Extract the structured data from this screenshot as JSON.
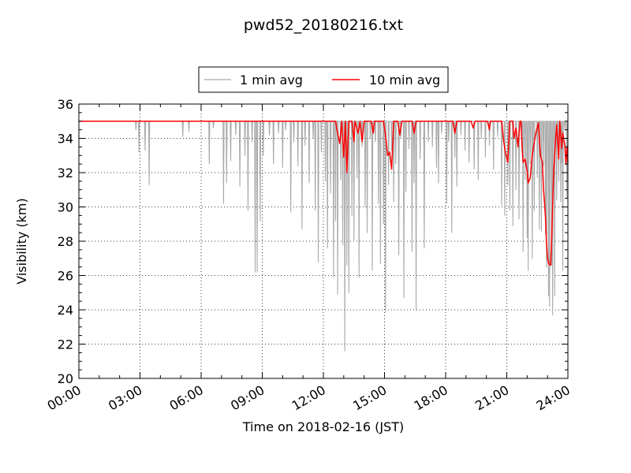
{
  "chart_data": {
    "type": "line",
    "title": "pwd52_20180216.txt",
    "xlabel": "Time on 2018-02-16 (JST)",
    "ylabel": "Visibility (km)",
    "xlim_hours": [
      0,
      24
    ],
    "ylim": [
      20,
      36
    ],
    "x_ticks": [
      {
        "hour": 0,
        "label": "00:00"
      },
      {
        "hour": 3,
        "label": "03:00"
      },
      {
        "hour": 6,
        "label": "06:00"
      },
      {
        "hour": 9,
        "label": "09:00"
      },
      {
        "hour": 12,
        "label": "12:00"
      },
      {
        "hour": 15,
        "label": "15:00"
      },
      {
        "hour": 18,
        "label": "18:00"
      },
      {
        "hour": 21,
        "label": "21:00"
      },
      {
        "hour": 24,
        "label": "24:00"
      }
    ],
    "y_ticks": [
      20,
      22,
      24,
      26,
      28,
      30,
      32,
      34,
      36
    ],
    "grid": true,
    "legend": "top-center, outside plot",
    "series": [
      {
        "name": "1 min avg",
        "color": "#aaaaaa",
        "baseline": 35.0,
        "dips": [
          [
            2.8,
            34.5
          ],
          [
            2.95,
            33.2
          ],
          [
            3.25,
            33.3
          ],
          [
            3.45,
            31.3
          ],
          [
            5.1,
            34.1
          ],
          [
            5.4,
            34.4
          ],
          [
            6.4,
            32.5
          ],
          [
            6.6,
            34.6
          ],
          [
            7.1,
            30.2
          ],
          [
            7.25,
            31.4
          ],
          [
            7.45,
            32.7
          ],
          [
            7.7,
            34.2
          ],
          [
            7.9,
            31.2
          ],
          [
            8.15,
            33.0
          ],
          [
            8.3,
            29.8
          ],
          [
            8.5,
            33.8
          ],
          [
            8.65,
            26.2
          ],
          [
            8.75,
            26.2
          ],
          [
            8.9,
            29.2
          ],
          [
            9.05,
            33.0
          ],
          [
            9.35,
            34.2
          ],
          [
            9.55,
            32.5
          ],
          [
            9.8,
            34.3
          ],
          [
            10.0,
            32.3
          ],
          [
            10.15,
            34.5
          ],
          [
            10.4,
            29.7
          ],
          [
            10.55,
            33.8
          ],
          [
            10.75,
            32.4
          ],
          [
            10.95,
            28.7
          ],
          [
            11.1,
            33.6
          ],
          [
            11.3,
            31.4
          ],
          [
            11.5,
            34.0
          ],
          [
            11.6,
            29.8
          ],
          [
            11.75,
            26.8
          ],
          [
            11.9,
            33.2
          ],
          [
            12.1,
            31.5
          ],
          [
            12.2,
            27.6
          ],
          [
            12.35,
            30.8
          ],
          [
            12.5,
            25.9
          ],
          [
            12.6,
            29.2
          ],
          [
            12.7,
            24.9
          ],
          [
            12.85,
            31.6
          ],
          [
            12.95,
            27.8
          ],
          [
            13.05,
            21.6
          ],
          [
            13.15,
            26.6
          ],
          [
            13.25,
            25.0
          ],
          [
            13.4,
            29.5
          ],
          [
            13.5,
            28.0
          ],
          [
            13.65,
            31.7
          ],
          [
            13.75,
            25.9
          ],
          [
            13.9,
            33.5
          ],
          [
            14.05,
            30.0
          ],
          [
            14.15,
            28.5
          ],
          [
            14.3,
            34.0
          ],
          [
            14.4,
            26.3
          ],
          [
            14.55,
            33.8
          ],
          [
            14.7,
            30.2
          ],
          [
            14.8,
            26.7
          ],
          [
            14.95,
            29.0
          ],
          [
            15.05,
            23.9
          ],
          [
            15.2,
            31.3
          ],
          [
            15.35,
            33.3
          ],
          [
            15.45,
            30.3
          ],
          [
            15.55,
            32.5
          ],
          [
            15.7,
            27.2
          ],
          [
            15.8,
            34.0
          ],
          [
            15.95,
            24.7
          ],
          [
            16.05,
            30.9
          ],
          [
            16.2,
            33.4
          ],
          [
            16.35,
            27.4
          ],
          [
            16.45,
            31.4
          ],
          [
            16.55,
            24.0
          ],
          [
            16.75,
            32.8
          ],
          [
            16.95,
            27.6
          ],
          [
            17.15,
            33.8
          ],
          [
            17.35,
            33.5
          ],
          [
            17.55,
            32.3
          ],
          [
            17.65,
            31.4
          ],
          [
            17.8,
            34.3
          ],
          [
            18.05,
            30.2
          ],
          [
            18.15,
            33.8
          ],
          [
            18.3,
            28.5
          ],
          [
            18.45,
            32.9
          ],
          [
            18.55,
            31.2
          ],
          [
            18.75,
            34.2
          ],
          [
            18.95,
            33.3
          ],
          [
            19.15,
            32.6
          ],
          [
            19.4,
            32.2
          ],
          [
            19.6,
            31.6
          ],
          [
            19.75,
            34.0
          ],
          [
            19.95,
            32.9
          ],
          [
            20.15,
            33.6
          ],
          [
            20.35,
            32.2
          ],
          [
            20.55,
            34.1
          ],
          [
            20.75,
            30.1
          ],
          [
            20.9,
            29.5
          ],
          [
            21.05,
            31.3
          ],
          [
            21.15,
            29.8
          ],
          [
            21.3,
            28.9
          ],
          [
            21.45,
            31.0
          ],
          [
            21.6,
            29.3
          ],
          [
            21.75,
            33.3
          ],
          [
            21.8,
            27.4
          ],
          [
            21.9,
            31.6
          ],
          [
            22.0,
            28.2
          ],
          [
            22.05,
            26.3
          ],
          [
            22.15,
            32.5
          ],
          [
            22.25,
            27.0
          ],
          [
            22.35,
            29.8
          ],
          [
            22.5,
            31.7
          ],
          [
            22.6,
            28.7
          ],
          [
            22.7,
            28.6
          ],
          [
            22.8,
            32.4
          ],
          [
            22.9,
            28.4
          ],
          [
            22.95,
            26.5
          ],
          [
            23.05,
            24.8
          ],
          [
            23.1,
            24.2
          ],
          [
            23.2,
            26.6
          ],
          [
            23.25,
            23.7
          ],
          [
            23.35,
            24.8
          ],
          [
            23.45,
            30.4
          ],
          [
            23.55,
            31.5
          ],
          [
            23.65,
            30.3
          ],
          [
            23.7,
            32.6
          ],
          [
            23.75,
            26.3
          ],
          [
            23.85,
            34.5
          ],
          [
            23.95,
            30.5
          ]
        ]
      },
      {
        "name": "10 min avg",
        "color": "#ff0000",
        "points": [
          [
            0,
            35.0
          ],
          [
            12.6,
            35.0
          ],
          [
            12.65,
            34.6
          ],
          [
            12.8,
            33.7
          ],
          [
            12.9,
            35.0
          ],
          [
            13.0,
            32.9
          ],
          [
            13.08,
            35.0
          ],
          [
            13.15,
            32.0
          ],
          [
            13.25,
            35.0
          ],
          [
            13.4,
            35.0
          ],
          [
            13.5,
            33.8
          ],
          [
            13.55,
            35.0
          ],
          [
            13.7,
            34.3
          ],
          [
            13.8,
            35.0
          ],
          [
            13.9,
            33.8
          ],
          [
            14.0,
            35.0
          ],
          [
            14.35,
            35.0
          ],
          [
            14.45,
            34.3
          ],
          [
            14.5,
            35.0
          ],
          [
            14.95,
            35.0
          ],
          [
            15.05,
            34.2
          ],
          [
            15.15,
            33.0
          ],
          [
            15.25,
            33.2
          ],
          [
            15.35,
            32.2
          ],
          [
            15.45,
            35.0
          ],
          [
            15.65,
            35.0
          ],
          [
            15.75,
            34.2
          ],
          [
            15.85,
            35.0
          ],
          [
            16.35,
            35.0
          ],
          [
            16.45,
            34.3
          ],
          [
            16.55,
            35.0
          ],
          [
            18.35,
            35.0
          ],
          [
            18.45,
            34.3
          ],
          [
            18.55,
            35.0
          ],
          [
            19.25,
            35.0
          ],
          [
            19.35,
            34.6
          ],
          [
            19.45,
            35.0
          ],
          [
            20.05,
            35.0
          ],
          [
            20.15,
            34.5
          ],
          [
            20.2,
            35.0
          ],
          [
            20.75,
            35.0
          ],
          [
            20.85,
            33.8
          ],
          [
            20.95,
            33.1
          ],
          [
            21.05,
            32.6
          ],
          [
            21.15,
            35.0
          ],
          [
            21.3,
            35.0
          ],
          [
            21.35,
            34.0
          ],
          [
            21.45,
            34.6
          ],
          [
            21.55,
            33.5
          ],
          [
            21.65,
            35.0
          ],
          [
            21.7,
            35.0
          ],
          [
            21.75,
            33.5
          ],
          [
            21.8,
            32.6
          ],
          [
            21.9,
            32.8
          ],
          [
            22.0,
            32.1
          ],
          [
            22.05,
            31.4
          ],
          [
            22.15,
            31.7
          ],
          [
            22.25,
            33.0
          ],
          [
            22.35,
            33.8
          ],
          [
            22.45,
            34.4
          ],
          [
            22.55,
            34.9
          ],
          [
            22.65,
            33.0
          ],
          [
            22.75,
            32.6
          ],
          [
            22.8,
            31.1
          ],
          [
            22.9,
            29.4
          ],
          [
            22.95,
            27.9
          ],
          [
            23.0,
            27.0
          ],
          [
            23.05,
            26.7
          ],
          [
            23.15,
            26.6
          ],
          [
            23.2,
            28.0
          ],
          [
            23.3,
            32.0
          ],
          [
            23.4,
            34.0
          ],
          [
            23.45,
            34.8
          ],
          [
            23.55,
            32.8
          ],
          [
            23.6,
            35.0
          ],
          [
            23.7,
            33.4
          ],
          [
            23.75,
            34.3
          ],
          [
            23.85,
            33.6
          ],
          [
            23.9,
            32.5
          ],
          [
            23.95,
            33.5
          ],
          [
            24.0,
            32.6
          ]
        ]
      }
    ]
  }
}
